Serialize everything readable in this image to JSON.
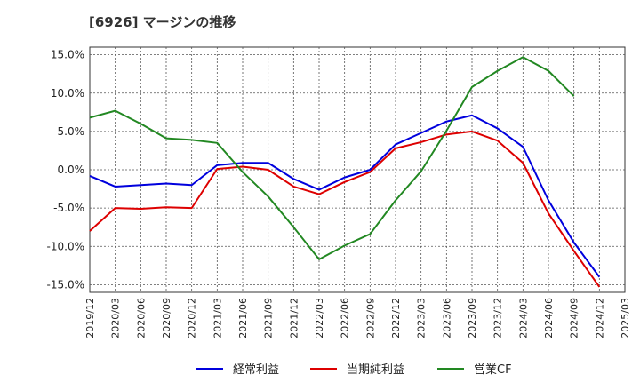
{
  "title": "[6926]  マージンの推移",
  "chart_data": {
    "type": "line",
    "ylim": [
      -16,
      16
    ],
    "yticks": [
      15,
      10,
      5,
      0,
      -5,
      -10,
      -15
    ],
    "ytick_labels": [
      "15.0%",
      "10.0%",
      "5.0%",
      "0.0%",
      "-5.0%",
      "-10.0%",
      "-15.0%"
    ],
    "x": [
      "2019/12",
      "2020/03",
      "2020/06",
      "2020/09",
      "2020/12",
      "2021/03",
      "2021/06",
      "2021/09",
      "2021/12",
      "2022/03",
      "2022/06",
      "2022/09",
      "2022/12",
      "2023/03",
      "2023/06",
      "2023/09",
      "2023/12",
      "2024/03",
      "2024/06",
      "2024/09",
      "2024/12",
      "2025/03"
    ],
    "grid": true,
    "legend_position": "bottom",
    "series": [
      {
        "name": "経常利益",
        "color": "#0000dd",
        "values": [
          -0.8,
          -2.2,
          -2.0,
          -1.8,
          -2.0,
          0.6,
          0.9,
          0.9,
          -1.2,
          -2.6,
          -1.0,
          0.0,
          3.3,
          4.8,
          6.3,
          7.1,
          5.4,
          3.0,
          -4.0,
          -9.5,
          -14.0,
          null
        ]
      },
      {
        "name": "当期純利益",
        "color": "#dd0000",
        "values": [
          -8.0,
          -5.0,
          -5.1,
          -4.9,
          -5.0,
          0.1,
          0.4,
          0.0,
          -2.2,
          -3.2,
          -1.6,
          -0.3,
          2.8,
          3.6,
          4.6,
          5.0,
          3.8,
          0.9,
          -5.7,
          -10.6,
          -15.3,
          null
        ]
      },
      {
        "name": "営業CF",
        "color": "#228822",
        "values": [
          6.8,
          7.7,
          6.0,
          4.1,
          3.9,
          3.5,
          -0.3,
          -3.5,
          -7.5,
          -11.7,
          -9.9,
          -8.4,
          -4.0,
          -0.2,
          5.1,
          10.8,
          12.9,
          14.7,
          12.9,
          9.6,
          null,
          null
        ]
      }
    ]
  }
}
